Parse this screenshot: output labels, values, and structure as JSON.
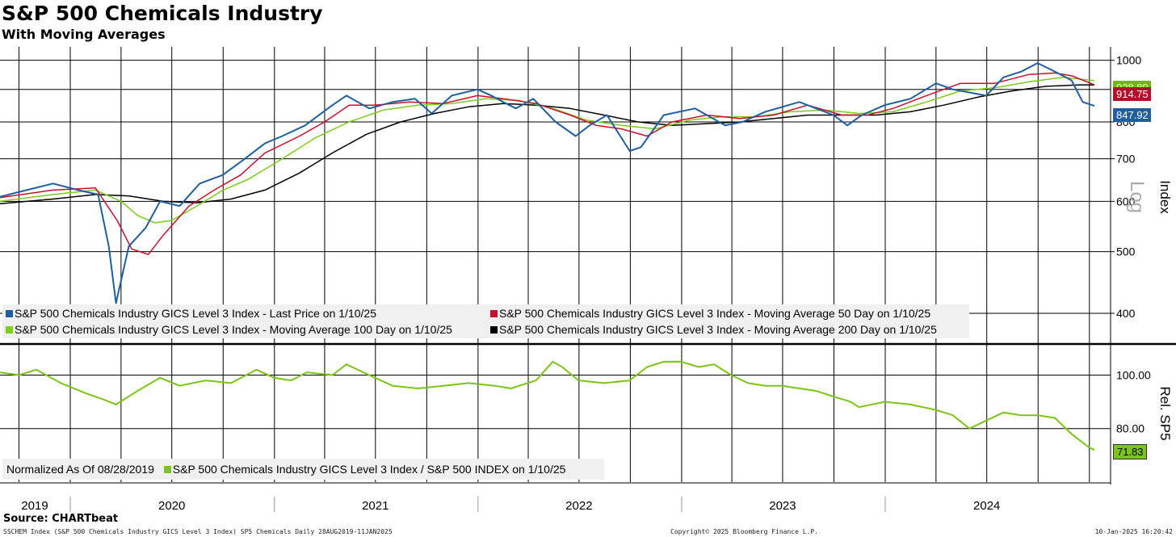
{
  "title": "S&P 500 Chemicals Industry",
  "subtitle": "With Moving Averages",
  "source": "Source: CHARTbeat",
  "footer": {
    "left": "SSCHEM Index (S&P 500 Chemicals Industry GICS Level 3 Index) SP5 Chemicals  Daily 28AUG2019-11JAN2025",
    "center": "Copyright© 2025 Bloomberg Finance L.P.",
    "right": "10-Jan-2025 16:20:42"
  },
  "colors": {
    "last": "#1f5fa0",
    "ma50": "#c8102e",
    "ma100": "#7ccc1a",
    "ma200": "#000000",
    "rel": "#7cc41a"
  },
  "chart_data": [
    {
      "type": "line",
      "panel": "top",
      "scale": "log",
      "axis_label": "Index",
      "axis_label_log": "Log",
      "yticks": [
        400,
        500,
        600,
        700,
        800,
        1000
      ],
      "ylim": [
        360,
        1050
      ],
      "x_years": [
        "2019",
        "2020",
        "2021",
        "2022",
        "2023",
        "2024"
      ],
      "x_range": [
        "2019-08-28",
        "2025-01-10"
      ],
      "series": [
        {
          "name": "S&P 500 Chemicals Industry GICS Level 3 Index - Last Price on 1/10/25",
          "key": "last",
          "last_value": "847.92",
          "points": [
            [
              "2019-08-28",
              610
            ],
            [
              "2019-10-15",
              625
            ],
            [
              "2019-12-01",
              640
            ],
            [
              "2020-01-15",
              625
            ],
            [
              "2020-02-20",
              615
            ],
            [
              "2020-03-10",
              510
            ],
            [
              "2020-03-23",
              415
            ],
            [
              "2020-04-15",
              510
            ],
            [
              "2020-05-15",
              545
            ],
            [
              "2020-06-10",
              600
            ],
            [
              "2020-07-15",
              590
            ],
            [
              "2020-08-20",
              640
            ],
            [
              "2020-09-30",
              660
            ],
            [
              "2020-11-09",
              700
            ],
            [
              "2020-12-15",
              740
            ],
            [
              "2021-01-15",
              760
            ],
            [
              "2021-02-25",
              790
            ],
            [
              "2021-04-15",
              850
            ],
            [
              "2021-05-10",
              880
            ],
            [
              "2021-06-20",
              840
            ],
            [
              "2021-08-01",
              860
            ],
            [
              "2021-09-10",
              870
            ],
            [
              "2021-10-10",
              825
            ],
            [
              "2021-11-15",
              880
            ],
            [
              "2021-12-31",
              900
            ],
            [
              "2022-01-25",
              880
            ],
            [
              "2022-02-15",
              860
            ],
            [
              "2022-03-10",
              840
            ],
            [
              "2022-04-10",
              870
            ],
            [
              "2022-05-20",
              800
            ],
            [
              "2022-06-25",
              760
            ],
            [
              "2022-07-20",
              790
            ],
            [
              "2022-08-20",
              820
            ],
            [
              "2022-09-30",
              720
            ],
            [
              "2022-10-20",
              730
            ],
            [
              "2022-11-30",
              820
            ],
            [
              "2023-01-25",
              840
            ],
            [
              "2023-03-20",
              790
            ],
            [
              "2023-04-20",
              800
            ],
            [
              "2023-05-31",
              830
            ],
            [
              "2023-07-31",
              860
            ],
            [
              "2023-08-30",
              840
            ],
            [
              "2023-09-30",
              820
            ],
            [
              "2023-10-25",
              790
            ],
            [
              "2023-11-20",
              820
            ],
            [
              "2023-12-31",
              850
            ],
            [
              "2024-02-15",
              870
            ],
            [
              "2024-04-01",
              920
            ],
            [
              "2024-05-01",
              900
            ],
            [
              "2024-06-30",
              880
            ],
            [
              "2024-07-31",
              940
            ],
            [
              "2024-09-01",
              960
            ],
            [
              "2024-09-30",
              990
            ],
            [
              "2024-10-31",
              960
            ],
            [
              "2024-11-30",
              930
            ],
            [
              "2024-12-20",
              860
            ],
            [
              "2025-01-10",
              848
            ]
          ]
        },
        {
          "name": "S&P 500 Chemicals Industry GICS Level 3 Index - Moving Average 50 Day on 1/10/25",
          "key": "ma50",
          "last_value": "914.75",
          "points": [
            [
              "2019-08-28",
              608
            ],
            [
              "2019-12-01",
              625
            ],
            [
              "2020-02-15",
              630
            ],
            [
              "2020-03-25",
              560
            ],
            [
              "2020-04-20",
              505
            ],
            [
              "2020-05-20",
              495
            ],
            [
              "2020-06-15",
              530
            ],
            [
              "2020-08-01",
              590
            ],
            [
              "2020-09-15",
              625
            ],
            [
              "2020-11-01",
              660
            ],
            [
              "2020-12-15",
              715
            ],
            [
              "2021-02-15",
              760
            ],
            [
              "2021-04-01",
              800
            ],
            [
              "2021-05-15",
              850
            ],
            [
              "2021-06-30",
              850
            ],
            [
              "2021-09-01",
              860
            ],
            [
              "2021-10-31",
              855
            ],
            [
              "2021-12-31",
              880
            ],
            [
              "2022-02-15",
              870
            ],
            [
              "2022-04-15",
              855
            ],
            [
              "2022-06-15",
              820
            ],
            [
              "2022-08-01",
              790
            ],
            [
              "2022-09-15",
              780
            ],
            [
              "2022-10-31",
              760
            ],
            [
              "2022-12-15",
              800
            ],
            [
              "2023-02-15",
              820
            ],
            [
              "2023-04-15",
              810
            ],
            [
              "2023-06-15",
              820
            ],
            [
              "2023-08-15",
              850
            ],
            [
              "2023-10-15",
              820
            ],
            [
              "2023-11-30",
              820
            ],
            [
              "2024-01-15",
              840
            ],
            [
              "2024-03-15",
              880
            ],
            [
              "2024-05-15",
              920
            ],
            [
              "2024-07-15",
              920
            ],
            [
              "2024-09-15",
              950
            ],
            [
              "2024-10-31",
              955
            ],
            [
              "2024-12-01",
              945
            ],
            [
              "2025-01-10",
              915
            ]
          ]
        },
        {
          "name": "S&P 500 Chemicals Industry GICS Level 3 Index - Moving Average 100 Day on 1/10/25",
          "key": "ma100",
          "last_value": "928.89",
          "points": [
            [
              "2019-08-28",
              600
            ],
            [
              "2019-12-01",
              615
            ],
            [
              "2020-02-15",
              625
            ],
            [
              "2020-04-01",
              600
            ],
            [
              "2020-05-01",
              570
            ],
            [
              "2020-06-01",
              555
            ],
            [
              "2020-07-01",
              560
            ],
            [
              "2020-08-15",
              590
            ],
            [
              "2020-10-01",
              625
            ],
            [
              "2020-11-15",
              650
            ],
            [
              "2021-01-15",
              700
            ],
            [
              "2021-03-15",
              755
            ],
            [
              "2021-05-15",
              800
            ],
            [
              "2021-07-15",
              835
            ],
            [
              "2021-09-15",
              850
            ],
            [
              "2021-11-15",
              855
            ],
            [
              "2022-01-15",
              870
            ],
            [
              "2022-03-15",
              865
            ],
            [
              "2022-05-15",
              840
            ],
            [
              "2022-07-15",
              805
            ],
            [
              "2022-09-15",
              790
            ],
            [
              "2022-11-15",
              780
            ],
            [
              "2023-01-15",
              805
            ],
            [
              "2023-03-15",
              815
            ],
            [
              "2023-05-15",
              815
            ],
            [
              "2023-07-15",
              830
            ],
            [
              "2023-09-15",
              835
            ],
            [
              "2023-11-15",
              825
            ],
            [
              "2024-01-15",
              830
            ],
            [
              "2024-03-15",
              860
            ],
            [
              "2024-05-15",
              895
            ],
            [
              "2024-07-15",
              905
            ],
            [
              "2024-09-15",
              925
            ],
            [
              "2024-11-15",
              940
            ],
            [
              "2025-01-10",
              929
            ]
          ]
        },
        {
          "name": "S&P 500 Chemicals Industry GICS Level 3 Index - Moving Average 200 Day on 1/10/25",
          "key": "ma200",
          "points": [
            [
              "2019-08-28",
              595
            ],
            [
              "2019-12-01",
              605
            ],
            [
              "2020-02-15",
              615
            ],
            [
              "2020-04-15",
              612
            ],
            [
              "2020-06-15",
              600
            ],
            [
              "2020-08-15",
              597
            ],
            [
              "2020-10-15",
              605
            ],
            [
              "2020-12-15",
              625
            ],
            [
              "2021-02-15",
              665
            ],
            [
              "2021-04-15",
              715
            ],
            [
              "2021-06-15",
              765
            ],
            [
              "2021-08-15",
              800
            ],
            [
              "2021-10-15",
              825
            ],
            [
              "2021-12-15",
              845
            ],
            [
              "2022-02-15",
              855
            ],
            [
              "2022-04-15",
              850
            ],
            [
              "2022-06-15",
              840
            ],
            [
              "2022-08-15",
              820
            ],
            [
              "2022-10-15",
              800
            ],
            [
              "2022-12-15",
              790
            ],
            [
              "2023-02-15",
              795
            ],
            [
              "2023-04-15",
              800
            ],
            [
              "2023-06-15",
              810
            ],
            [
              "2023-08-15",
              820
            ],
            [
              "2023-10-15",
              820
            ],
            [
              "2023-12-15",
              820
            ],
            [
              "2024-02-15",
              830
            ],
            [
              "2024-04-15",
              850
            ],
            [
              "2024-06-15",
              875
            ],
            [
              "2024-08-15",
              895
            ],
            [
              "2024-10-15",
              910
            ],
            [
              "2024-12-15",
              915
            ],
            [
              "2025-01-10",
              915
            ]
          ]
        }
      ]
    },
    {
      "type": "line",
      "panel": "bottom",
      "axis_label": "Rel. SP5",
      "yticks": [
        "80.00",
        "100.00"
      ],
      "ylim": [
        60,
        111
      ],
      "normalized_label": "Normalized As Of 08/28/2019",
      "series": [
        {
          "name": "S&P 500 Chemicals Industry GICS Level 3 Index / S&P 500 INDEX on 1/10/25",
          "key": "rel",
          "last_value": "71.83",
          "points": [
            [
              "2019-08-28",
              101
            ],
            [
              "2019-10-01",
              100
            ],
            [
              "2019-11-01",
              102
            ],
            [
              "2019-12-15",
              97
            ],
            [
              "2020-01-31",
              93
            ],
            [
              "2020-02-28",
              91
            ],
            [
              "2020-03-23",
              89
            ],
            [
              "2020-04-30",
              94
            ],
            [
              "2020-06-10",
              99
            ],
            [
              "2020-07-15",
              96
            ],
            [
              "2020-08-31",
              98
            ],
            [
              "2020-10-15",
              97
            ],
            [
              "2020-11-30",
              102
            ],
            [
              "2020-12-31",
              99
            ],
            [
              "2021-01-31",
              98
            ],
            [
              "2021-02-28",
              101
            ],
            [
              "2021-04-15",
              100
            ],
            [
              "2021-05-10",
              104
            ],
            [
              "2021-06-30",
              99
            ],
            [
              "2021-08-01",
              96
            ],
            [
              "2021-09-15",
              95
            ],
            [
              "2021-10-31",
              96
            ],
            [
              "2021-12-15",
              97
            ],
            [
              "2022-01-31",
              96
            ],
            [
              "2022-03-01",
              95
            ],
            [
              "2022-04-15",
              98
            ],
            [
              "2022-05-15",
              105
            ],
            [
              "2022-06-01",
              103
            ],
            [
              "2022-06-30",
              98
            ],
            [
              "2022-08-15",
              97
            ],
            [
              "2022-09-30",
              98
            ],
            [
              "2022-10-31",
              103
            ],
            [
              "2022-11-30",
              105
            ],
            [
              "2022-12-31",
              105
            ],
            [
              "2023-02-01",
              103
            ],
            [
              "2023-02-28",
              104
            ],
            [
              "2023-03-31",
              100
            ],
            [
              "2023-04-30",
              97
            ],
            [
              "2023-05-31",
              96
            ],
            [
              "2023-06-30",
              96
            ],
            [
              "2023-07-31",
              95
            ],
            [
              "2023-08-31",
              94
            ],
            [
              "2023-09-30",
              92
            ],
            [
              "2023-10-31",
              90
            ],
            [
              "2023-11-15",
              88
            ],
            [
              "2023-12-31",
              90
            ],
            [
              "2024-02-15",
              89
            ],
            [
              "2024-03-31",
              87
            ],
            [
              "2024-05-01",
              85
            ],
            [
              "2024-05-31",
              80
            ],
            [
              "2024-06-30",
              83
            ],
            [
              "2024-07-31",
              86
            ],
            [
              "2024-08-31",
              85
            ],
            [
              "2024-09-30",
              85
            ],
            [
              "2024-10-31",
              84
            ],
            [
              "2024-11-30",
              78
            ],
            [
              "2024-12-31",
              73
            ],
            [
              "2025-01-10",
              72
            ]
          ]
        }
      ]
    }
  ]
}
